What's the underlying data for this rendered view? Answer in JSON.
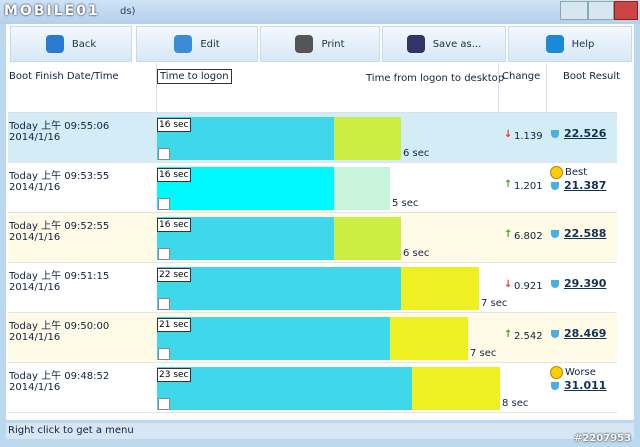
{
  "window": {
    "watermark": "MOBILE01",
    "title_fragment": "ds)",
    "stamp": "#2207953"
  },
  "toolbar": [
    "Back",
    "Edit",
    "Print",
    "Save as...",
    "Help"
  ],
  "header": {
    "date": "Boot Finish Date/Time",
    "logon": "Time to logon",
    "desktop": "Time from logon to desktop",
    "change": "Change",
    "result": "Boot Result"
  },
  "rows": [
    {
      "time": "Today 上午 09:55:06",
      "date": "2014/1/16",
      "logon": "16 sec",
      "desktop": "6 sec",
      "change": "1.139",
      "result": "22.526"
    },
    {
      "time": "Today 上午 09:53:55",
      "date": "2014/1/16",
      "logon": "16 sec",
      "desktop": "5 sec",
      "change": "1.201",
      "note": "Best",
      "result": "21.387"
    },
    {
      "time": "Today 上午 09:52:55",
      "date": "2014/1/16",
      "logon": "16 sec",
      "desktop": "6 sec",
      "change": "6.802",
      "result": "22.588"
    },
    {
      "time": "Today 上午 09:51:15",
      "date": "2014/1/16",
      "logon": "22 sec",
      "desktop": "7 sec",
      "change": "0.921",
      "result": "29.390"
    },
    {
      "time": "Today 上午 09:50:00",
      "date": "2014/1/16",
      "logon": "21 sec",
      "desktop": "7 sec",
      "change": "2.542",
      "result": "28.469"
    },
    {
      "time": "Today 上午 09:48:52",
      "date": "2014/1/16",
      "logon": "23 sec",
      "desktop": "8 sec",
      "change": "",
      "note": "Worse",
      "result": "31.011"
    }
  ],
  "status": "Right click to get a menu"
}
